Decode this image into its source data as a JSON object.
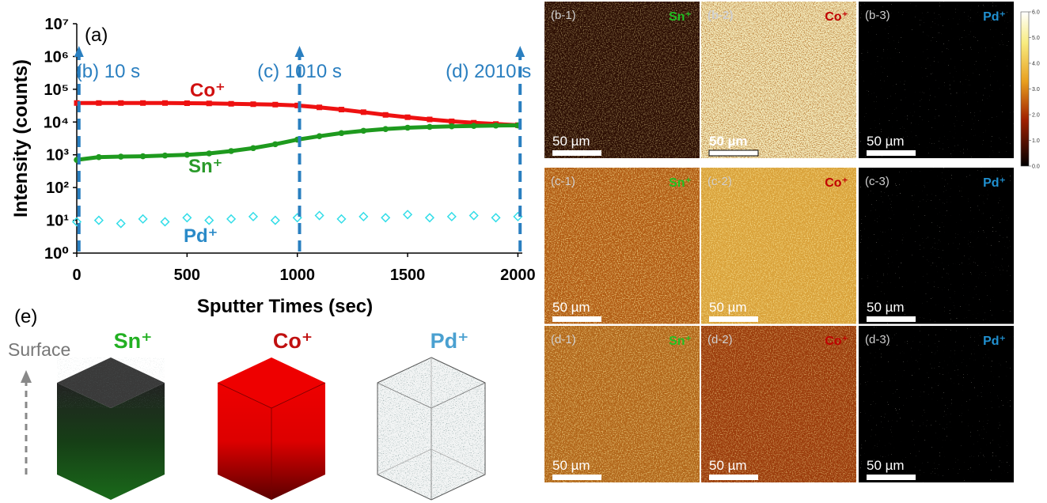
{
  "chart_data": {
    "type": "scatter",
    "panel_label": "(a)",
    "xlabel": "Sputter Times (sec)",
    "ylabel": "Intensity (counts)",
    "xlim": [
      0,
      2020
    ],
    "xticks": [
      0,
      500,
      1000,
      1500,
      2000
    ],
    "ylim": [
      1,
      10000000
    ],
    "yscale": "log",
    "yticks": [
      {
        "value": 1,
        "label": "10⁰"
      },
      {
        "value": 10,
        "label": "10¹"
      },
      {
        "value": 100,
        "label": "10²"
      },
      {
        "value": 1000,
        "label": "10³"
      },
      {
        "value": 10000,
        "label": "10⁴"
      },
      {
        "value": 100000,
        "label": "10⁵"
      },
      {
        "value": 1000000,
        "label": "10⁶"
      },
      {
        "value": 10000000,
        "label": "10⁷"
      }
    ],
    "x": [
      0,
      100,
      200,
      300,
      400,
      500,
      600,
      700,
      800,
      900,
      1000,
      1100,
      1200,
      1300,
      1400,
      1500,
      1600,
      1700,
      1800,
      1900,
      2000
    ],
    "series": [
      {
        "name": "Co⁺",
        "color": "#ee1111",
        "marker": "square",
        "line": true,
        "values": [
          38000,
          38000,
          38000,
          38000,
          38000,
          37500,
          37000,
          36000,
          35000,
          34000,
          32000,
          28000,
          24000,
          20000,
          16500,
          14000,
          12000,
          10500,
          9500,
          8700,
          8000
        ]
      },
      {
        "name": "Sn⁺",
        "color": "#1e9a1e",
        "marker": "circle",
        "line": true,
        "values": [
          700,
          850,
          880,
          900,
          950,
          1000,
          1100,
          1300,
          1600,
          2100,
          2900,
          3700,
          4600,
          5400,
          6100,
          6700,
          7100,
          7400,
          7600,
          7800,
          7900
        ]
      },
      {
        "name": "Pd⁺",
        "color": "#33dde8",
        "marker": "diamond",
        "line": false,
        "values": [
          9,
          10,
          8,
          11,
          9,
          12,
          10,
          11,
          13,
          10,
          12,
          14,
          11,
          13,
          12,
          15,
          12,
          13,
          14,
          12,
          13
        ]
      }
    ],
    "markers": [
      {
        "x": 10,
        "label": "(b) 10 s"
      },
      {
        "x": 1010,
        "label": "(c) 1010 s"
      },
      {
        "x": 2010,
        "label": "(d) 2010 s"
      }
    ]
  },
  "maps": {
    "panels": [
      {
        "label": "(b-1)",
        "ion": "Sn⁺",
        "scale_bar": "50 µm"
      },
      {
        "label": "(b-2)",
        "ion": "Co⁺",
        "scale_bar": "50 µm"
      },
      {
        "label": "(b-3)",
        "ion": "Pd⁺",
        "scale_bar": "50 µm"
      },
      {
        "label": "(c-1)",
        "ion": "Sn⁺",
        "scale_bar": "50 µm"
      },
      {
        "label": "(c-2)",
        "ion": "Co⁺",
        "scale_bar": "50 µm"
      },
      {
        "label": "(c-3)",
        "ion": "Pd⁺",
        "scale_bar": "50 µm"
      },
      {
        "label": "(d-1)",
        "ion": "Sn⁺",
        "scale_bar": "50 µm"
      },
      {
        "label": "(d-2)",
        "ion": "Co⁺",
        "scale_bar": "50 µm"
      },
      {
        "label": "(d-3)",
        "ion": "Pd⁺",
        "scale_bar": "50 µm"
      }
    ],
    "colorbar_lim": [
      0,
      6
    ],
    "colorbar_ticks": [
      {
        "value": 0,
        "label": "0.0"
      },
      {
        "value": 1,
        "label": "1.0"
      },
      {
        "value": 2,
        "label": "2.0"
      },
      {
        "value": 3,
        "label": "3.0"
      },
      {
        "value": 4,
        "label": "4.0"
      },
      {
        "value": 5,
        "label": "5.0"
      },
      {
        "value": 6,
        "label": "6.0"
      }
    ]
  },
  "cubes": {
    "panel_label": "(e)",
    "axis_label": "Surface",
    "labels": [
      "Sn⁺",
      "Co⁺",
      "Pd⁺"
    ]
  }
}
